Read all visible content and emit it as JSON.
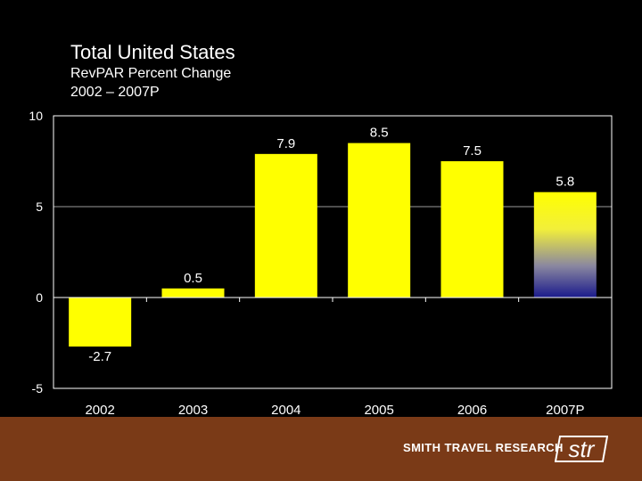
{
  "title": "Total United States",
  "subtitle_1": "RevPAR Percent Change",
  "subtitle_2": "2002 – 2007P",
  "footer": {
    "company": "SMITH TRAVEL RESEARCH",
    "logo": "str"
  },
  "colors": {
    "background": "#000000",
    "bar": "#ffff00",
    "projected_bottom": "#1a1a8c",
    "footer": "#7a3a17",
    "text": "#ffffff"
  },
  "chart_data": {
    "type": "bar",
    "categories": [
      "2002",
      "2003",
      "2004",
      "2005",
      "2006",
      "2007P"
    ],
    "values": [
      -2.7,
      0.5,
      7.9,
      8.5,
      7.5,
      5.8
    ],
    "data_labels": [
      "-2.7",
      "0.5",
      "7.9",
      "8.5",
      "7.5",
      "5.8"
    ],
    "ylim": [
      -5,
      10
    ],
    "yticks": [
      10,
      5,
      0,
      -5
    ],
    "ytick_labels": [
      "10",
      "5",
      "0",
      "-5"
    ],
    "gridlines": true,
    "projected_category": "2007P"
  }
}
